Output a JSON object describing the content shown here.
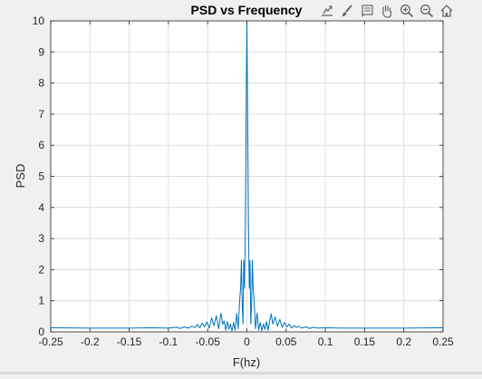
{
  "toolbar": {
    "icons": [
      "export-icon",
      "brush-icon",
      "data-tips-icon",
      "pan-icon",
      "zoom-in-icon",
      "zoom-out-icon",
      "home-icon"
    ]
  },
  "colors": {
    "figure_bg": "#f0f0f0",
    "axes_bg": "#ffffff",
    "line": "#0072bd",
    "grid": "#dedede",
    "axis": "#262626"
  },
  "chart_data": {
    "type": "line",
    "title": "PSD vs Frequency",
    "xlabel": "F(hz)",
    "ylabel": "PSD",
    "xlim": [
      -0.25,
      0.25
    ],
    "ylim": [
      0,
      10
    ],
    "grid": true,
    "xticks": [
      -0.25,
      -0.2,
      -0.15,
      -0.1,
      -0.05,
      0,
      0.05,
      0.1,
      0.15,
      0.2,
      0.25
    ],
    "xtick_labels": [
      "-0.25",
      "-0.2",
      "-0.15",
      "-0.1",
      "-0.05",
      "0",
      "0.05",
      "0.1",
      "0.15",
      "0.2",
      "0.25"
    ],
    "yticks": [
      0,
      1,
      2,
      3,
      4,
      5,
      6,
      7,
      8,
      9,
      10
    ],
    "ytick_labels": [
      "0",
      "1",
      "2",
      "3",
      "4",
      "5",
      "6",
      "7",
      "8",
      "9",
      "10"
    ],
    "series": [
      {
        "x": [
          -0.25,
          -0.2,
          -0.15,
          -0.12,
          -0.1,
          -0.09,
          -0.085,
          -0.08,
          -0.075,
          -0.07,
          -0.066,
          -0.063,
          -0.06,
          -0.057,
          -0.054,
          -0.051,
          -0.048,
          -0.045,
          -0.042,
          -0.039,
          -0.036,
          -0.033,
          -0.031,
          -0.029,
          -0.027,
          -0.025,
          -0.023,
          -0.021,
          -0.019,
          -0.017,
          -0.015,
          -0.013,
          -0.011,
          -0.009,
          -0.008,
          -0.007,
          -0.006,
          -0.005,
          -0.004,
          -0.003,
          -0.002,
          -0.001,
          0,
          0.001,
          0.002,
          0.003,
          0.004,
          0.005,
          0.006,
          0.007,
          0.008,
          0.009,
          0.011,
          0.013,
          0.015,
          0.017,
          0.019,
          0.021,
          0.023,
          0.025,
          0.027,
          0.029,
          0.031,
          0.033,
          0.036,
          0.039,
          0.042,
          0.045,
          0.048,
          0.051,
          0.054,
          0.057,
          0.06,
          0.063,
          0.066,
          0.07,
          0.075,
          0.08,
          0.085,
          0.09,
          0.1,
          0.12,
          0.15,
          0.2,
          0.25
        ],
        "y": [
          0.13,
          0.12,
          0.12,
          0.13,
          0.12,
          0.15,
          0.11,
          0.16,
          0.12,
          0.18,
          0.14,
          0.24,
          0.13,
          0.28,
          0.16,
          0.32,
          0.12,
          0.45,
          0.2,
          0.52,
          0.1,
          0.6,
          0.25,
          0.35,
          0.05,
          0.33,
          0.08,
          0.25,
          0.03,
          0.3,
          0.05,
          0.6,
          0.1,
          1.1,
          1.4,
          2.3,
          0.9,
          0.25,
          2.3,
          1.4,
          3.5,
          7.0,
          10.0,
          7.0,
          3.5,
          1.4,
          2.3,
          0.25,
          0.9,
          2.3,
          1.4,
          1.1,
          0.1,
          0.6,
          0.05,
          0.3,
          0.03,
          0.25,
          0.08,
          0.33,
          0.05,
          0.35,
          0.58,
          0.25,
          0.48,
          0.18,
          0.4,
          0.14,
          0.3,
          0.16,
          0.25,
          0.12,
          0.2,
          0.14,
          0.18,
          0.12,
          0.16,
          0.11,
          0.15,
          0.12,
          0.13,
          0.12,
          0.12,
          0.12,
          0.13
        ]
      }
    ]
  }
}
